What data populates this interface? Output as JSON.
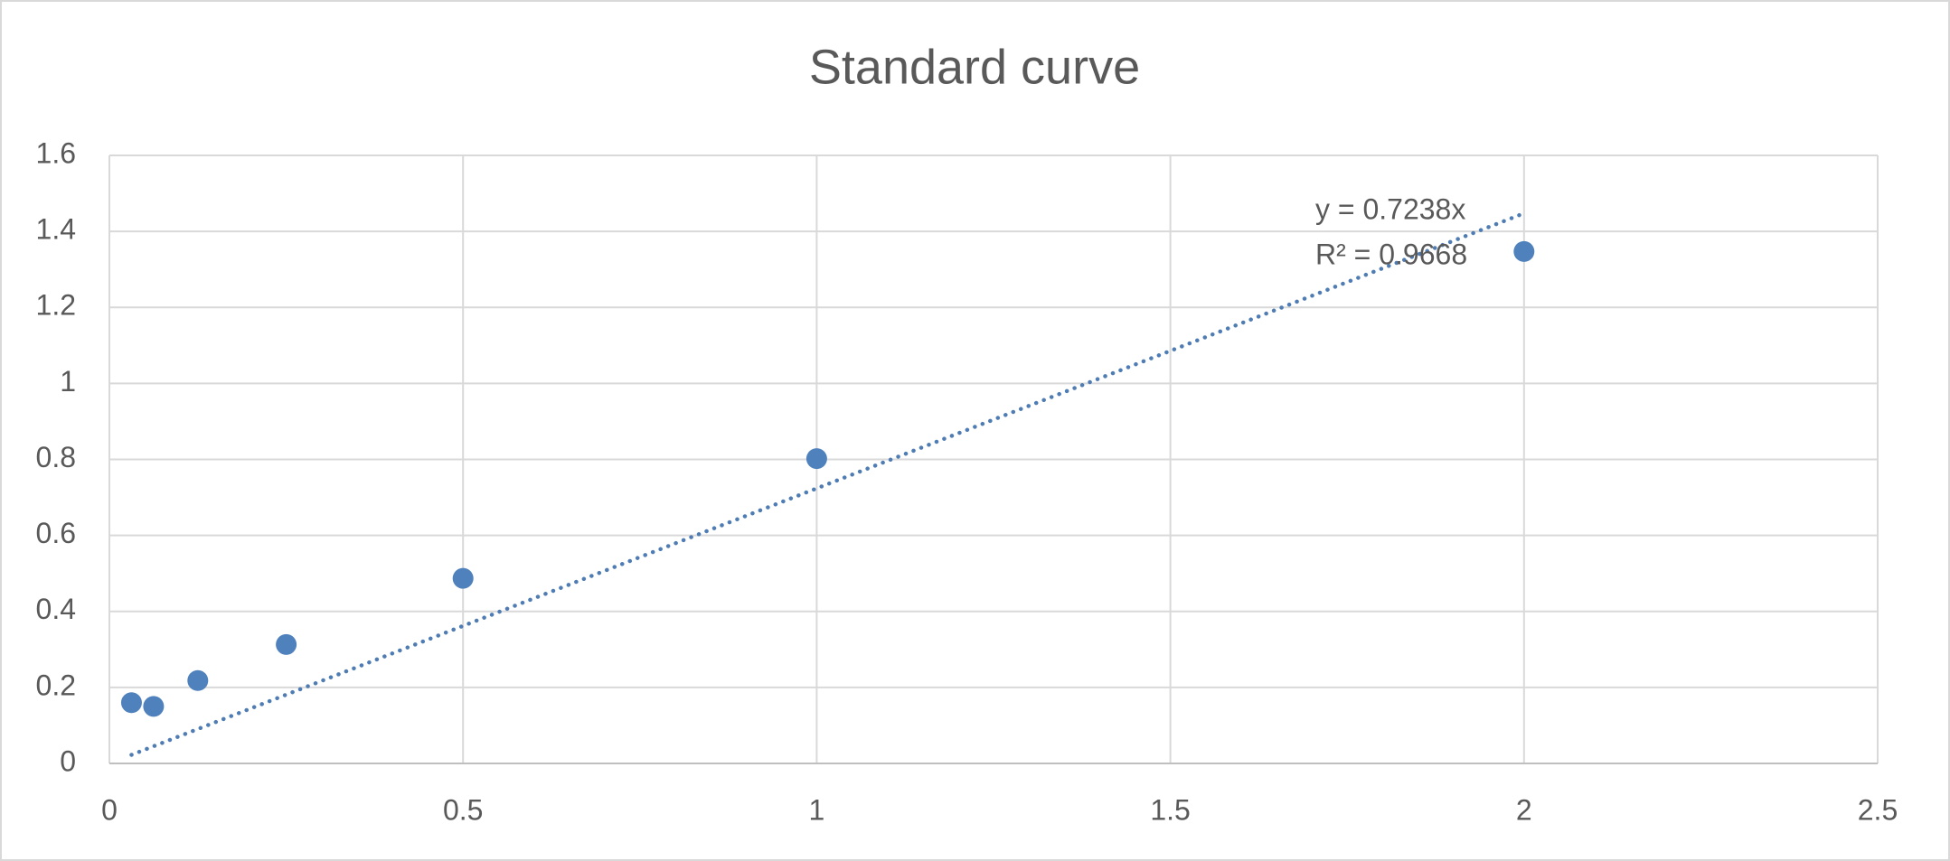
{
  "chart_data": {
    "type": "scatter",
    "title": "Standard curve",
    "x": [
      0.03125,
      0.0625,
      0.125,
      0.25,
      0.5,
      1,
      2
    ],
    "values": [
      0.16,
      0.15,
      0.218,
      0.313,
      0.487,
      0.802,
      1.347
    ],
    "color": "#4f81bd",
    "xlim": [
      0,
      2.5
    ],
    "xticks": [
      0,
      0.5,
      1,
      1.5,
      2,
      2.5
    ],
    "ylim": [
      0,
      1.6
    ],
    "yticks": [
      0,
      0.2,
      0.4,
      0.6,
      0.8,
      1,
      1.2,
      1.4,
      1.6
    ],
    "grid": true,
    "trendline": {
      "slope": 0.7238,
      "style": "dotted",
      "color": "#4f7db3",
      "equation": "y = 0.7238x",
      "r_squared": "R² = 0.9668"
    }
  }
}
